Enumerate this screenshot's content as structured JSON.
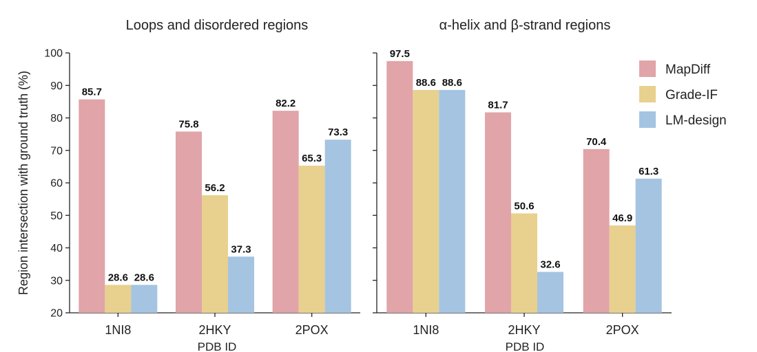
{
  "ylabel": "Region intersection with ground truth (%)",
  "colors": {
    "MapDiff": "#e0a4a9",
    "Grade-IF": "#e8d08e",
    "LM-design": "#a4c4e2"
  },
  "legend": {
    "placement": "top-right",
    "entries": [
      "MapDiff",
      "Grade-IF",
      "LM-design"
    ]
  },
  "chart_data": [
    {
      "type": "bar",
      "title": "Loops and disordered regions",
      "xlabel": "PDB ID",
      "ylabel": "Region intersection with ground truth (%)",
      "ylim": [
        20,
        100
      ],
      "yticks": [
        "20",
        "30",
        "40",
        "50",
        "60",
        "70",
        "80",
        "90",
        "100"
      ],
      "categories": [
        "1NI8",
        "2HKY",
        "2POX"
      ],
      "series": [
        {
          "name": "MapDiff",
          "values": [
            85.7,
            75.8,
            82.2
          ],
          "labels": [
            "85.7",
            "75.8",
            "82.2"
          ]
        },
        {
          "name": "Grade-IF",
          "values": [
            28.6,
            56.2,
            65.3
          ],
          "labels": [
            "28.6",
            "56.2",
            "65.3"
          ]
        },
        {
          "name": "LM-design",
          "values": [
            28.6,
            37.3,
            73.3
          ],
          "labels": [
            "28.6",
            "37.3",
            "73.3"
          ]
        }
      ]
    },
    {
      "type": "bar",
      "title": "α-helix and β-strand regions",
      "xlabel": "PDB ID",
      "ylim": [
        20,
        100
      ],
      "categories": [
        "1NI8",
        "2HKY",
        "2POX"
      ],
      "series": [
        {
          "name": "MapDiff",
          "values": [
            97.5,
            81.7,
            70.4
          ],
          "labels": [
            "97.5",
            "81.7",
            "70.4"
          ]
        },
        {
          "name": "Grade-IF",
          "values": [
            88.6,
            50.6,
            46.9
          ],
          "labels": [
            "88.6",
            "50.6",
            "46.9"
          ]
        },
        {
          "name": "LM-design",
          "values": [
            88.6,
            32.6,
            61.3
          ],
          "labels": [
            "88.6",
            "32.6",
            "61.3"
          ]
        }
      ]
    }
  ]
}
